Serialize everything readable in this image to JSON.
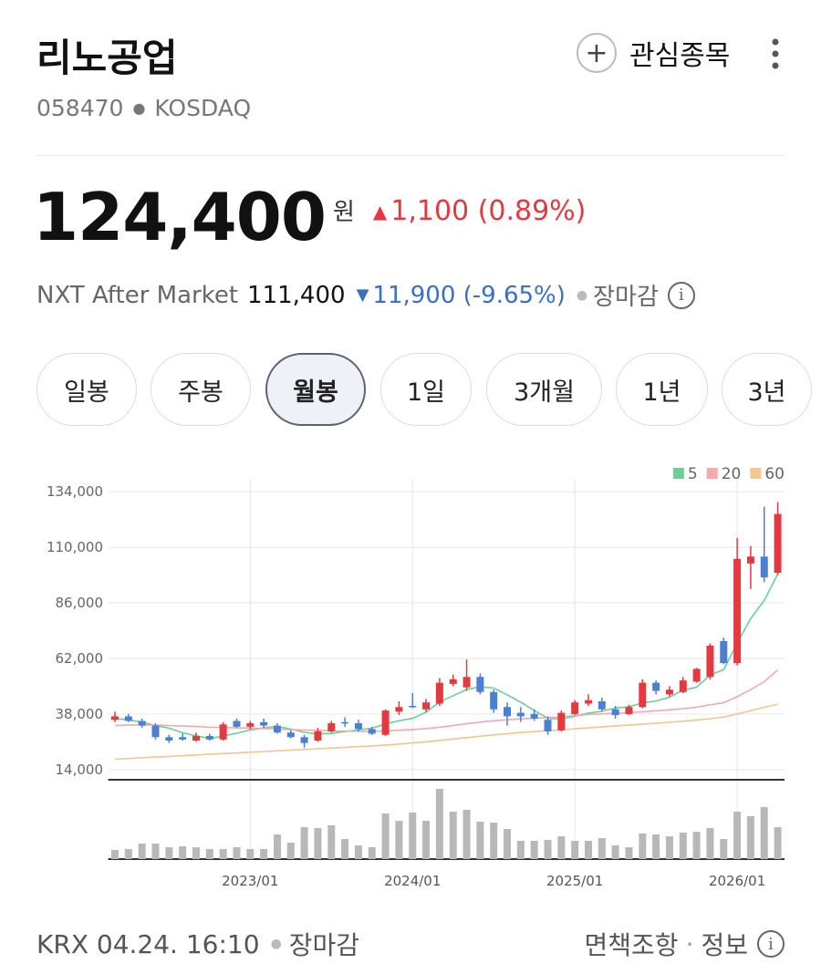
{
  "header": {
    "title": "리노공업",
    "code": "058470",
    "market": "KOSDAQ",
    "watch": "관심종목"
  },
  "price": {
    "value": "124,400",
    "unit": "원",
    "change": "1,100 (0.89%)"
  },
  "after_market": {
    "label": "NXT After Market",
    "price": "111,400",
    "change": "11,900 (-9.65%)",
    "status": "장마감"
  },
  "tabs": [
    "일봉",
    "주봉",
    "월봉",
    "1일",
    "3개월",
    "1년",
    "3년"
  ],
  "selected_tab": 2,
  "chart_data": {
    "type": "candlestick",
    "categories": [
      null,
      null,
      null,
      null,
      null,
      null,
      null,
      null,
      null,
      null,
      "2023/01",
      null,
      null,
      null,
      null,
      null,
      null,
      null,
      null,
      null,
      null,
      null,
      "2024/01",
      null,
      null,
      null,
      null,
      null,
      null,
      null,
      null,
      null,
      null,
      null,
      "2025/01",
      null,
      null,
      null,
      null,
      null,
      null,
      null,
      null,
      null,
      null,
      null,
      "2026/01",
      null,
      null,
      null
    ],
    "open": [
      35500,
      37000,
      35000,
      33000,
      28000,
      28000,
      26500,
      28500,
      27000,
      35000,
      32500,
      34500,
      33000,
      30000,
      28000,
      26500,
      30500,
      34500,
      34000,
      31500,
      29000,
      39000,
      41500,
      40000,
      42500,
      51000,
      49500,
      54000,
      47500,
      41000,
      38500,
      38000,
      35500,
      31000,
      38000,
      42500,
      43500,
      40000,
      38000,
      41000,
      51500,
      46500,
      47500,
      52000,
      54000,
      69500,
      60000,
      103000,
      106000,
      99000
    ],
    "high": [
      39000,
      38000,
      36000,
      34000,
      29000,
      29500,
      30000,
      29500,
      34500,
      36000,
      35000,
      36000,
      34000,
      31000,
      29000,
      32000,
      35000,
      36500,
      35500,
      32500,
      40000,
      43500,
      47000,
      44500,
      53500,
      55000,
      61500,
      55500,
      48500,
      43000,
      41000,
      40000,
      37000,
      39500,
      44000,
      46500,
      45000,
      41500,
      42000,
      53000,
      52500,
      50000,
      54000,
      58000,
      68500,
      71000,
      114000,
      110500,
      127500,
      129500
    ],
    "low": [
      34500,
      34500,
      32000,
      27000,
      25500,
      26500,
      26000,
      26500,
      26500,
      32000,
      31500,
      32000,
      29500,
      27500,
      23500,
      26000,
      30000,
      32500,
      30500,
      29000,
      28500,
      37500,
      40500,
      39000,
      41500,
      50000,
      48000,
      46500,
      38500,
      33000,
      34500,
      35000,
      29000,
      30500,
      37500,
      41500,
      39000,
      36000,
      37500,
      40500,
      46500,
      45500,
      47000,
      51500,
      53000,
      59500,
      59000,
      92000,
      95000,
      98000
    ],
    "close": [
      37000,
      35000,
      33000,
      28000,
      26500,
      27000,
      28500,
      27000,
      33500,
      32500,
      34000,
      33000,
      30000,
      28000,
      25500,
      30500,
      34000,
      34000,
      31500,
      29500,
      39500,
      41000,
      41000,
      43000,
      51500,
      53000,
      54000,
      47500,
      40000,
      37000,
      37000,
      36000,
      30500,
      38500,
      43000,
      44000,
      40000,
      37500,
      41000,
      51500,
      48000,
      48500,
      52500,
      57500,
      67500,
      60000,
      105000,
      106000,
      97000,
      124400
    ],
    "up_color": "#e5393f",
    "down_color": "#4a7fd4",
    "series": [
      {
        "name": "5",
        "color": "#6ccf9a",
        "values": [
          36000,
          35500,
          34500,
          33000,
          31900,
          29900,
          28600,
          27400,
          28500,
          29700,
          31100,
          32000,
          32600,
          31500,
          30100,
          29400,
          29600,
          30400,
          31100,
          31900,
          33700,
          35100,
          36100,
          38800,
          43200,
          45900,
          48500,
          49800,
          49200,
          46300,
          43100,
          39500,
          36100,
          35800,
          37000,
          38400,
          39200,
          40600,
          41100,
          42800,
          43600,
          45300,
          48300,
          49600,
          54800,
          57200,
          68500,
          79200,
          87100,
          98500
        ]
      },
      {
        "name": "20",
        "color": "#f2aaaa",
        "values": [
          33000,
          33200,
          33300,
          33200,
          33000,
          32800,
          32600,
          32300,
          32200,
          32000,
          31900,
          31700,
          31500,
          31300,
          31100,
          30900,
          30700,
          30600,
          30500,
          30500,
          30700,
          31000,
          31300,
          31700,
          32300,
          33000,
          33800,
          34500,
          35100,
          35500,
          35900,
          36200,
          36400,
          36800,
          37300,
          37800,
          38100,
          38300,
          38600,
          39000,
          39400,
          39800,
          40300,
          40900,
          42000,
          42900,
          45500,
          48500,
          52000,
          57000
        ]
      },
      {
        "name": "60",
        "color": "#f2c690",
        "values": [
          18500,
          18800,
          19100,
          19400,
          19700,
          20000,
          20300,
          20600,
          20900,
          21200,
          21500,
          21800,
          22100,
          22400,
          22700,
          23000,
          23300,
          23600,
          23900,
          24200,
          24600,
          25000,
          25500,
          26000,
          26600,
          27200,
          27800,
          28400,
          29000,
          29500,
          30000,
          30400,
          30800,
          31200,
          31600,
          32000,
          32400,
          32800,
          33200,
          33600,
          34000,
          34400,
          34900,
          35400,
          36000,
          36700,
          38000,
          39500,
          40900,
          42300
        ]
      }
    ],
    "volume": {
      "color": "#b8b8b8",
      "values": [
        10,
        11,
        17,
        17,
        13,
        14,
        13,
        11,
        11,
        13,
        11,
        11,
        27,
        18,
        35,
        34,
        37,
        22,
        15,
        13,
        50,
        42,
        51,
        42,
        77,
        52,
        54,
        41,
        40,
        33,
        20,
        20,
        21,
        25,
        20,
        20,
        23,
        15,
        13,
        28,
        27,
        25,
        29,
        30,
        34,
        22,
        52,
        47,
        57,
        35
      ]
    },
    "vlim": [
      0,
      80
    ],
    "ylim": [
      10000,
      138000
    ],
    "yticks": [
      {
        "value": 14000,
        "label": "14,000"
      },
      {
        "value": 38000,
        "label": "38,000"
      },
      {
        "value": 62000,
        "label": "62,000"
      },
      {
        "value": 86000,
        "label": "86,000"
      },
      {
        "value": 110000,
        "label": "110,000"
      },
      {
        "value": 134000,
        "label": "134,000"
      }
    ],
    "grid": true
  },
  "footer": {
    "source": "KRX 04.24. 16:10",
    "status": "장마감",
    "disclaimer": "면책조항",
    "info": "정보"
  }
}
